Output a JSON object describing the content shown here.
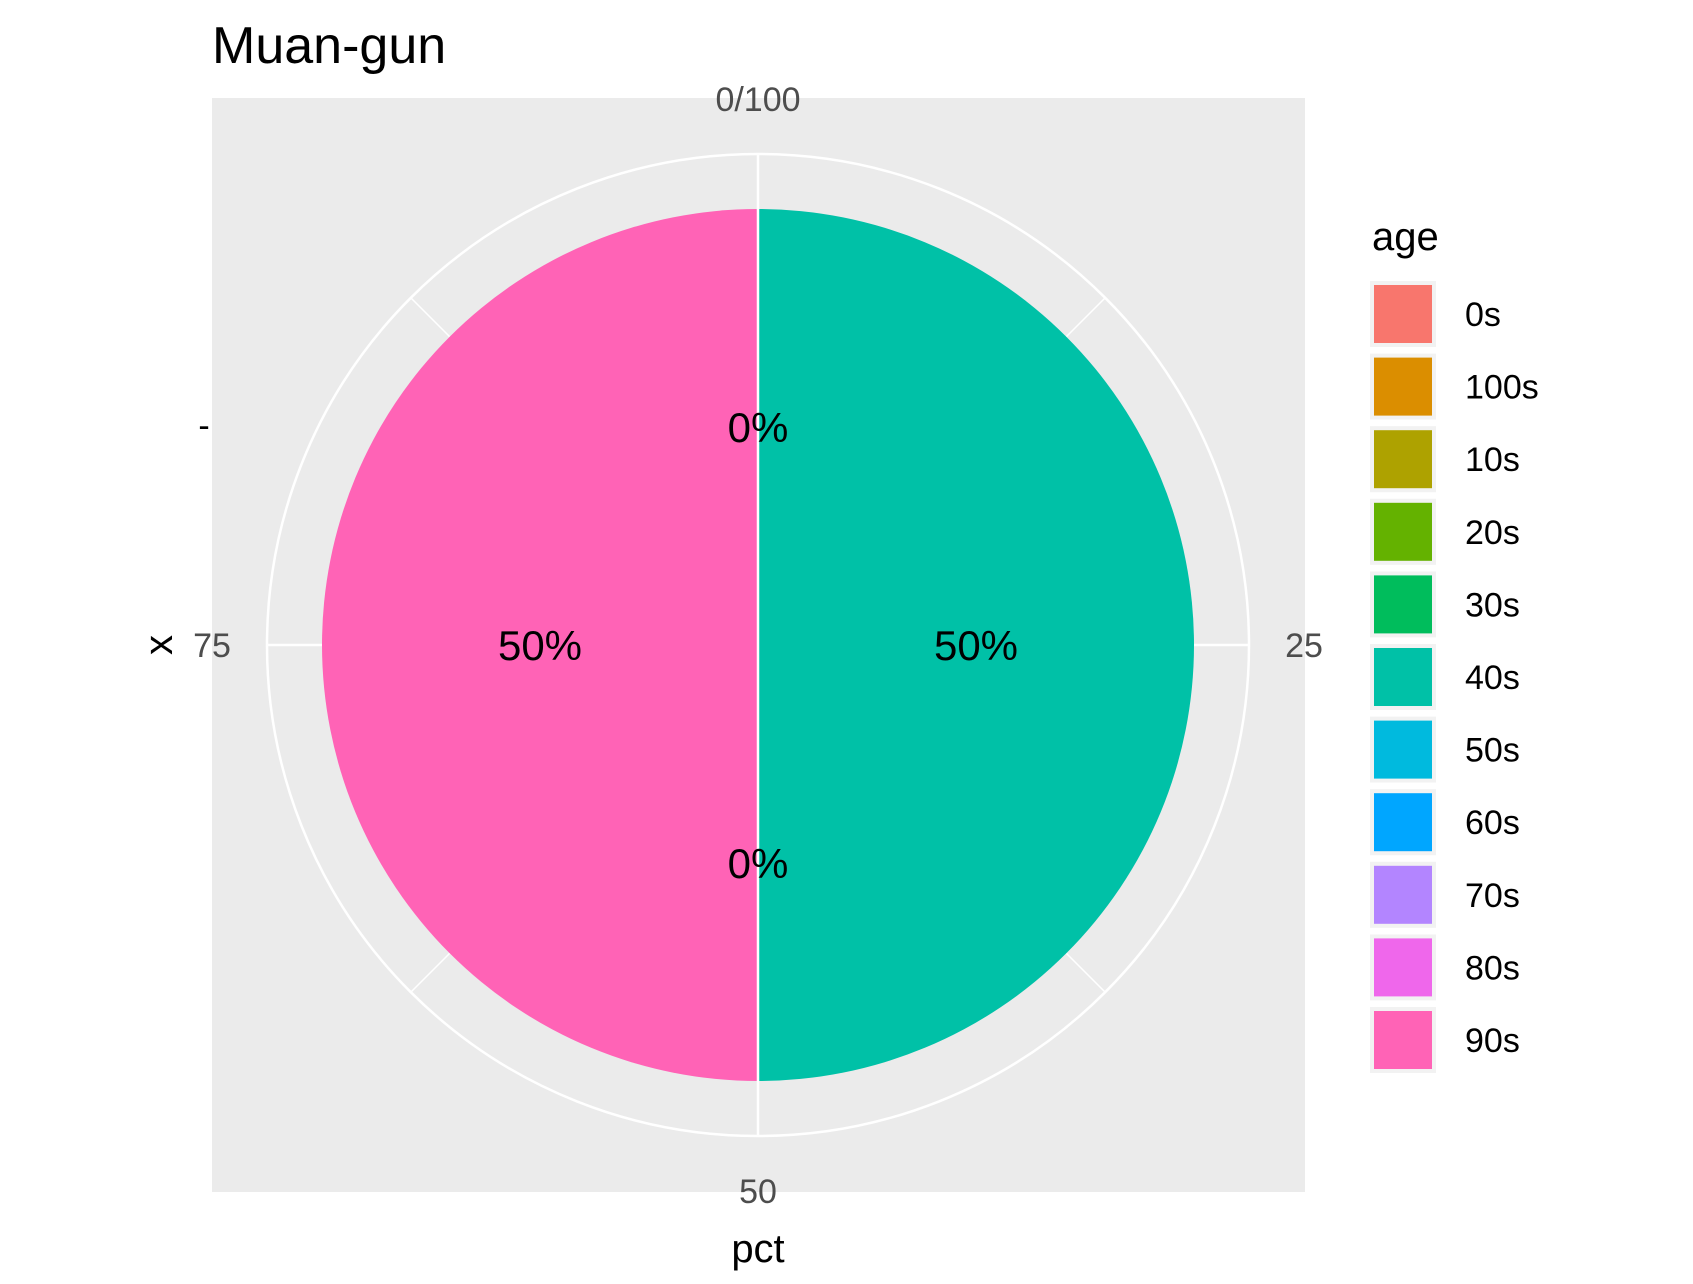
{
  "chart_data": {
    "type": "pie",
    "title": "Muan-gun",
    "xlabel": "pct",
    "ylabel": "x",
    "y_tick_labels": [
      "-"
    ],
    "angle_ticks": [
      {
        "value": 0,
        "label": "0/100"
      },
      {
        "value": 25,
        "label": "25"
      },
      {
        "value": 50,
        "label": "50"
      },
      {
        "value": 75,
        "label": "75"
      }
    ],
    "slices": [
      {
        "category": "0s",
        "value": 0
      },
      {
        "category": "100s",
        "value": 0
      },
      {
        "category": "10s",
        "value": 0
      },
      {
        "category": "20s",
        "value": 0
      },
      {
        "category": "30s",
        "value": 0
      },
      {
        "category": "40s",
        "value": 50
      },
      {
        "category": "50s",
        "value": 0
      },
      {
        "category": "60s",
        "value": 0
      },
      {
        "category": "70s",
        "value": 0
      },
      {
        "category": "80s",
        "value": 0
      },
      {
        "category": "90s",
        "value": 50
      }
    ],
    "data_labels": [
      {
        "text": "50%",
        "slice": "90s"
      },
      {
        "text": "50%",
        "slice": "40s"
      },
      {
        "text": "0%",
        "slice": "top"
      },
      {
        "text": "0%",
        "slice": "bottom"
      }
    ],
    "legend": {
      "title": "age",
      "position": "right",
      "items": [
        {
          "label": "0s",
          "color": "#F8766D"
        },
        {
          "label": "100s",
          "color": "#DB8E00"
        },
        {
          "label": "10s",
          "color": "#AEA200"
        },
        {
          "label": "20s",
          "color": "#64B200"
        },
        {
          "label": "30s",
          "color": "#00BD5C"
        },
        {
          "label": "40s",
          "color": "#00C1A7"
        },
        {
          "label": "50s",
          "color": "#00BADE"
        },
        {
          "label": "60s",
          "color": "#00A6FF"
        },
        {
          "label": "70s",
          "color": "#B385FF"
        },
        {
          "label": "80s",
          "color": "#EF67EB"
        },
        {
          "label": "90s",
          "color": "#FF63B6"
        }
      ]
    },
    "colors": {
      "panel_background": "#EBEBEB",
      "grid": "#FFFFFF"
    },
    "grid": true
  }
}
